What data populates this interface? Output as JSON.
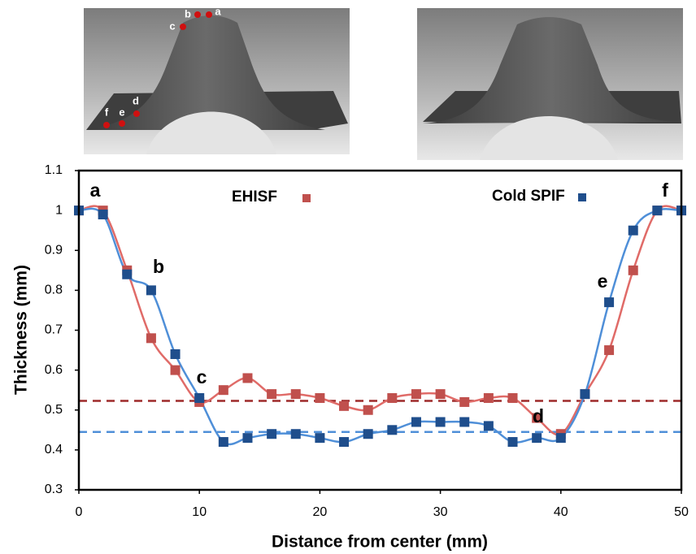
{
  "photos": {
    "labels": [
      "a",
      "b",
      "c",
      "d",
      "e",
      "f"
    ]
  },
  "chart_data": {
    "type": "line",
    "x_label": "Distance from center (mm)",
    "y_label": "Thickness (mm)",
    "x": [
      0,
      2,
      4,
      6,
      8,
      10,
      12,
      14,
      16,
      18,
      20,
      22,
      24,
      26,
      28,
      30,
      32,
      34,
      36,
      38,
      40,
      42,
      44,
      46,
      48,
      50
    ],
    "series": [
      {
        "name": "EHISF",
        "color": "#c0504d",
        "line_color": "#e06b68",
        "values": [
          1.0,
          1.0,
          0.85,
          0.68,
          0.6,
          0.52,
          0.55,
          0.58,
          0.54,
          0.54,
          0.53,
          0.51,
          0.5,
          0.53,
          0.54,
          0.54,
          0.52,
          0.53,
          0.53,
          0.48,
          0.44,
          0.54,
          0.65,
          0.85,
          1.0,
          1.0
        ]
      },
      {
        "name": "Cold SPIF",
        "color": "#1f4e8c",
        "line_color": "#4f8fd8",
        "values": [
          1.0,
          0.99,
          0.84,
          0.8,
          0.64,
          0.53,
          0.42,
          0.43,
          0.44,
          0.44,
          0.43,
          0.42,
          0.44,
          0.45,
          0.47,
          0.47,
          0.47,
          0.46,
          0.42,
          0.43,
          0.43,
          0.54,
          0.77,
          0.95,
          1.0,
          1.0
        ]
      }
    ],
    "reference_lines": [
      {
        "value": 0.523,
        "color": "#9e2a2a"
      },
      {
        "value": 0.445,
        "color": "#4f8fd8"
      }
    ],
    "annotations": [
      "a",
      "b",
      "c",
      "d",
      "e",
      "f"
    ],
    "xlim": [
      0,
      50
    ],
    "xticks": [
      0,
      10,
      20,
      30,
      40,
      50
    ],
    "ylim": [
      0.3,
      1.1
    ],
    "yticks": [
      0.3,
      0.4,
      0.5,
      0.6,
      0.7,
      0.8,
      0.9,
      1,
      1.1
    ]
  }
}
